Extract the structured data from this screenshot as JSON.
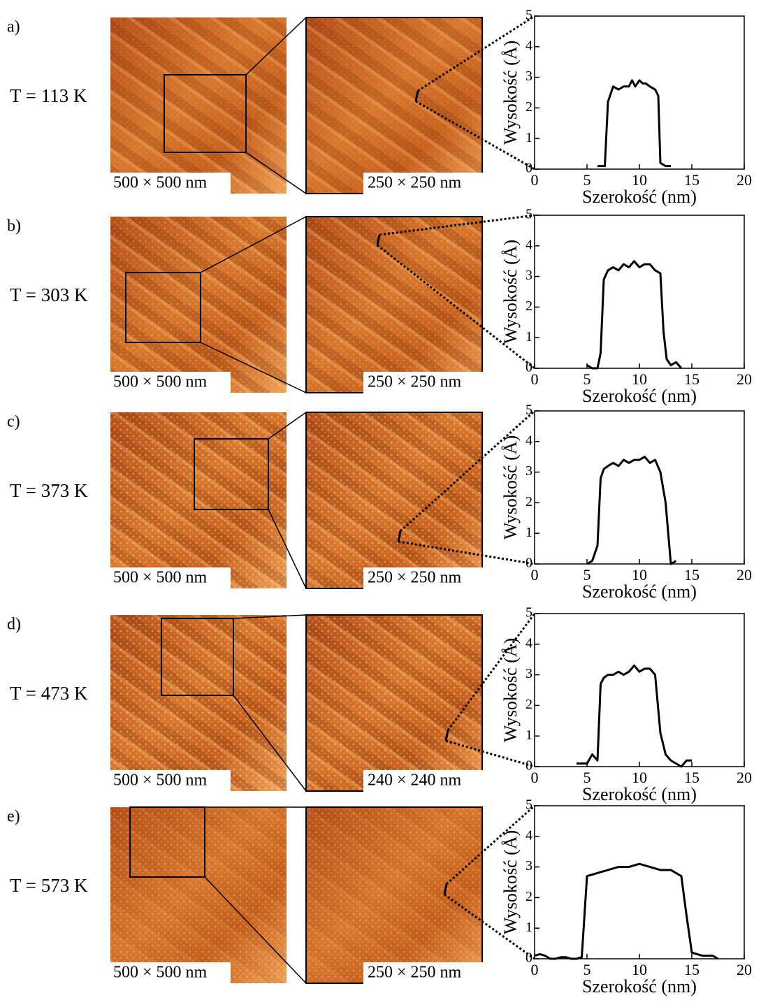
{
  "panels": [
    {
      "label": "a)",
      "temperature": "T = 113 K",
      "image_large": "500 × 500 nm",
      "image_zoom": "250 × 250 nm"
    },
    {
      "label": "b)",
      "temperature": "T = 303 K",
      "image_large": "500 × 500 nm",
      "image_zoom": "250 × 250 nm"
    },
    {
      "label": "c)",
      "temperature": "T = 373 K",
      "image_large": "500 × 500 nm",
      "image_zoom": "250 × 250 nm"
    },
    {
      "label": "d)",
      "temperature": "T = 473 K",
      "image_large": "500 × 500 nm",
      "image_zoom": "240 × 240 nm"
    },
    {
      "label": "e)",
      "temperature": "T = 573 K",
      "image_large": "500 × 500 nm",
      "image_zoom": "250 × 250 nm"
    }
  ],
  "chart_data": [
    {
      "type": "line",
      "x_label": "Szerokość (nm)",
      "y_label": "Wysokość (Å)",
      "xlim": [
        0,
        20
      ],
      "ylim": [
        0,
        5
      ],
      "xticks": [
        0,
        5,
        10,
        15,
        20
      ],
      "yticks": [
        0,
        1,
        2,
        3,
        4,
        5
      ],
      "series": [
        {
          "color": "#000000",
          "x": [
            6,
            6.5,
            6.7,
            7,
            7.5,
            8,
            8.5,
            9,
            9.3,
            9.6,
            10,
            10.3,
            10.6,
            11,
            11.5,
            11.8,
            12,
            12.5,
            13
          ],
          "values": [
            0.1,
            0.1,
            0.1,
            2.2,
            2.7,
            2.6,
            2.7,
            2.7,
            2.9,
            2.7,
            2.9,
            2.8,
            2.8,
            2.7,
            2.6,
            2.4,
            0.2,
            0.1,
            0.1
          ]
        }
      ]
    },
    {
      "type": "line",
      "x_label": "Szerokość (nm)",
      "y_label": "Wysokość (Å)",
      "xlim": [
        0,
        20
      ],
      "ylim": [
        0,
        5
      ],
      "xticks": [
        0,
        5,
        10,
        15,
        20
      ],
      "yticks": [
        0,
        1,
        2,
        3,
        4,
        5
      ],
      "series": [
        {
          "color": "#000000",
          "x": [
            5,
            5.5,
            6,
            6.3,
            6.6,
            7,
            7.5,
            8,
            8.5,
            9,
            9.5,
            10,
            10.5,
            11,
            11.5,
            12,
            12.3,
            12.6,
            13,
            13.5,
            14
          ],
          "values": [
            0.1,
            0,
            0,
            0.5,
            2.9,
            3.2,
            3.3,
            3.2,
            3.4,
            3.3,
            3.5,
            3.3,
            3.4,
            3.4,
            3.2,
            3.1,
            1.2,
            0.3,
            0.1,
            0.2,
            0
          ]
        }
      ]
    },
    {
      "type": "line",
      "x_label": "Szerokość (nm)",
      "y_label": "Wysokość (Å)",
      "xlim": [
        0,
        20
      ],
      "ylim": [
        0,
        5
      ],
      "xticks": [
        0,
        5,
        10,
        15,
        20
      ],
      "yticks": [
        0,
        1,
        2,
        3,
        4,
        5
      ],
      "series": [
        {
          "color": "#000000",
          "x": [
            5,
            5.5,
            6,
            6.3,
            6.6,
            7,
            7.5,
            8,
            8.5,
            9,
            9.5,
            10,
            10.5,
            11,
            11.5,
            12,
            12.5,
            12.8,
            13,
            13.5
          ],
          "values": [
            0,
            0.1,
            0.6,
            2.8,
            3.1,
            3.2,
            3.3,
            3.2,
            3.4,
            3.3,
            3.4,
            3.4,
            3.5,
            3.3,
            3.4,
            3,
            2,
            0.8,
            0,
            0.1
          ]
        }
      ]
    },
    {
      "type": "line",
      "x_label": "Szerokość (nm)",
      "y_label": "Wysokość (Å)",
      "xlim": [
        0,
        20
      ],
      "ylim": [
        0,
        5
      ],
      "xticks": [
        0,
        5,
        10,
        15,
        20
      ],
      "yticks": [
        0,
        1,
        2,
        3,
        4,
        5
      ],
      "series": [
        {
          "color": "#000000",
          "x": [
            4,
            4.5,
            5,
            5.5,
            6,
            6.3,
            6.6,
            7,
            7.5,
            8,
            8.5,
            9,
            9.5,
            10,
            10.5,
            11,
            11.5,
            12,
            12.5,
            13,
            13.5,
            14,
            14.5,
            15
          ],
          "values": [
            0.1,
            0.1,
            0.1,
            0.4,
            0.2,
            2.7,
            2.9,
            3,
            3,
            3.1,
            3,
            3.1,
            3.3,
            3.1,
            3.2,
            3.2,
            3,
            1.1,
            0.4,
            0.2,
            0.1,
            0,
            0.2,
            0.2
          ]
        }
      ]
    },
    {
      "type": "line",
      "x_label": "Szerokość (nm)",
      "y_label": "Wysokość (Å)",
      "xlim": [
        0,
        20
      ],
      "ylim": [
        0,
        5
      ],
      "xticks": [
        0,
        5,
        10,
        15,
        20
      ],
      "yticks": [
        0,
        1,
        2,
        3,
        4,
        5
      ],
      "series": [
        {
          "color": "#000000",
          "x": [
            0,
            0.5,
            1,
            1.5,
            2,
            2.5,
            3,
            3.5,
            4,
            4.5,
            5,
            6,
            7,
            8,
            9,
            10,
            11,
            12,
            13,
            14,
            14.5,
            15,
            16,
            17,
            17.5
          ],
          "values": [
            0.1,
            0.15,
            0.1,
            0,
            0,
            0.05,
            0.05,
            0,
            0,
            0.05,
            2.7,
            2.8,
            2.9,
            3,
            3,
            3.1,
            3,
            2.9,
            2.9,
            2.7,
            1.4,
            0.2,
            0.1,
            0.1,
            0
          ]
        }
      ]
    }
  ]
}
